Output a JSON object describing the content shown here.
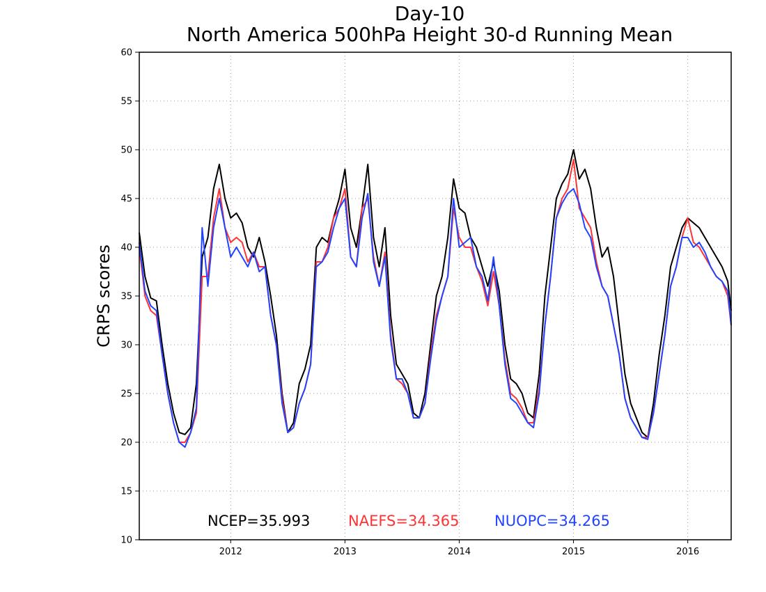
{
  "chart_data": {
    "type": "line",
    "title": "Day-10",
    "subtitle": "North America 500hPa Height 30-d Running Mean",
    "xlabel": "",
    "ylabel": "CRPS scores",
    "ylim": [
      10,
      60
    ],
    "yticks": [
      10,
      15,
      20,
      25,
      30,
      35,
      40,
      45,
      50,
      55,
      60
    ],
    "xlim": [
      2011.2,
      2016.38
    ],
    "xticks": [
      2012,
      2013,
      2014,
      2015,
      2016
    ],
    "xtick_labels": [
      "2012",
      "2013",
      "2014",
      "2015",
      "2016"
    ],
    "grid": true,
    "legend_position": "bottom-center",
    "colors": {
      "NCEP": "#000000",
      "NAEFS": "#ff3333",
      "NUOPC": "#2244ff"
    },
    "x": [
      2011.2,
      2011.25,
      2011.3,
      2011.35,
      2011.4,
      2011.45,
      2011.5,
      2011.55,
      2011.6,
      2011.65,
      2011.7,
      2011.75,
      2011.8,
      2011.85,
      2011.9,
      2011.95,
      2012.0,
      2012.05,
      2012.1,
      2012.15,
      2012.2,
      2012.25,
      2012.3,
      2012.35,
      2012.4,
      2012.45,
      2012.5,
      2012.55,
      2012.6,
      2012.65,
      2012.7,
      2012.75,
      2012.8,
      2012.85,
      2012.9,
      2012.95,
      2013.0,
      2013.05,
      2013.1,
      2013.15,
      2013.2,
      2013.25,
      2013.3,
      2013.35,
      2013.4,
      2013.45,
      2013.5,
      2013.55,
      2013.6,
      2013.65,
      2013.7,
      2013.75,
      2013.8,
      2013.85,
      2013.9,
      2013.95,
      2014.0,
      2014.05,
      2014.1,
      2014.15,
      2014.2,
      2014.25,
      2014.3,
      2014.35,
      2014.4,
      2014.45,
      2014.5,
      2014.55,
      2014.6,
      2014.65,
      2014.7,
      2014.75,
      2014.8,
      2014.85,
      2014.9,
      2014.95,
      2015.0,
      2015.05,
      2015.1,
      2015.15,
      2015.2,
      2015.25,
      2015.3,
      2015.35,
      2015.4,
      2015.45,
      2015.5,
      2015.55,
      2015.6,
      2015.65,
      2015.7,
      2015.75,
      2015.8,
      2015.85,
      2015.9,
      2015.95,
      2016.0,
      2016.05,
      2016.1,
      2016.15,
      2016.2,
      2016.25,
      2016.3,
      2016.35,
      2016.38
    ],
    "series": [
      {
        "name": "NCEP",
        "label": "NCEP=35.993",
        "values": [
          41.5,
          37.0,
          34.8,
          34.5,
          30.0,
          26.0,
          23.0,
          21.0,
          20.8,
          21.5,
          26.0,
          39.0,
          41.0,
          46.0,
          48.5,
          45.0,
          43.0,
          43.5,
          42.5,
          40.0,
          39.0,
          41.0,
          38.5,
          35.0,
          31.0,
          25.0,
          21.0,
          22.0,
          26.0,
          27.5,
          30.0,
          40.0,
          41.0,
          40.5,
          43.0,
          45.0,
          48.0,
          42.0,
          40.0,
          44.0,
          48.5,
          41.0,
          38.0,
          42.0,
          33.0,
          28.0,
          27.0,
          26.0,
          23.0,
          22.5,
          25.0,
          30.0,
          35.0,
          37.0,
          41.0,
          47.0,
          44.0,
          43.5,
          41.0,
          40.0,
          38.0,
          36.0,
          38.5,
          35.5,
          30.0,
          26.5,
          26.0,
          25.0,
          23.0,
          22.5,
          27.0,
          35.0,
          40.0,
          45.0,
          46.5,
          47.5,
          50.0,
          47.0,
          48.0,
          46.0,
          42.0,
          39.0,
          40.0,
          37.0,
          32.0,
          27.0,
          24.0,
          22.5,
          21.0,
          20.5,
          24.0,
          29.0,
          33.0,
          38.0,
          40.0,
          42.0,
          43.0,
          42.5,
          42.0,
          41.0,
          40.0,
          39.0,
          38.0,
          36.5,
          33.5
        ]
      },
      {
        "name": "NAEFS",
        "label": "NAEFS=34.365",
        "values": [
          40.0,
          35.0,
          33.5,
          33.0,
          29.0,
          25.0,
          22.0,
          20.0,
          20.0,
          21.0,
          23.0,
          37.0,
          37.0,
          43.0,
          46.0,
          42.0,
          40.5,
          41.0,
          40.5,
          38.5,
          39.5,
          38.0,
          38.0,
          33.0,
          30.0,
          24.5,
          21.0,
          21.5,
          24.0,
          25.5,
          28.0,
          38.5,
          38.5,
          40.0,
          43.0,
          44.0,
          46.0,
          39.0,
          38.0,
          44.0,
          45.0,
          39.0,
          36.0,
          39.5,
          31.0,
          26.5,
          26.0,
          25.0,
          22.5,
          22.5,
          24.0,
          29.0,
          33.0,
          35.0,
          37.0,
          44.0,
          41.0,
          40.0,
          40.0,
          38.0,
          36.5,
          34.0,
          37.5,
          34.0,
          28.5,
          25.0,
          24.5,
          23.5,
          22.0,
          22.0,
          25.5,
          32.0,
          37.0,
          43.0,
          45.0,
          46.0,
          49.0,
          44.0,
          43.0,
          42.0,
          38.5,
          36.0,
          35.0,
          32.0,
          29.0,
          24.5,
          22.5,
          21.5,
          20.5,
          20.5,
          23.0,
          27.0,
          31.0,
          36.0,
          38.0,
          41.0,
          43.0,
          40.5,
          40.0,
          39.0,
          38.0,
          37.0,
          36.5,
          35.0,
          32.0
        ]
      },
      {
        "name": "NUOPC",
        "label": "NUOPC=34.265",
        "values": [
          40.5,
          35.5,
          34.0,
          33.5,
          29.0,
          25.0,
          22.0,
          20.0,
          19.5,
          21.0,
          23.5,
          42.0,
          36.0,
          42.0,
          45.0,
          42.0,
          39.0,
          40.0,
          39.0,
          38.0,
          39.5,
          37.5,
          38.0,
          33.0,
          30.0,
          24.0,
          21.0,
          21.5,
          24.0,
          25.5,
          28.0,
          38.0,
          38.5,
          39.5,
          42.0,
          44.0,
          45.0,
          39.0,
          38.0,
          43.0,
          45.5,
          38.5,
          36.0,
          39.0,
          30.5,
          26.5,
          26.5,
          25.0,
          22.5,
          22.5,
          24.0,
          28.5,
          32.5,
          35.0,
          37.0,
          45.0,
          40.0,
          40.5,
          41.0,
          38.0,
          37.0,
          34.5,
          39.0,
          34.0,
          28.0,
          24.5,
          24.0,
          23.0,
          22.0,
          21.5,
          25.0,
          32.0,
          37.0,
          43.0,
          44.5,
          45.5,
          46.0,
          44.5,
          42.0,
          41.0,
          38.0,
          36.0,
          35.0,
          32.0,
          29.0,
          24.5,
          22.5,
          21.5,
          20.5,
          20.3,
          23.0,
          27.0,
          31.0,
          36.0,
          38.0,
          41.0,
          41.0,
          40.0,
          40.5,
          39.5,
          38.0,
          37.0,
          36.5,
          35.5,
          32.0
        ]
      }
    ]
  }
}
